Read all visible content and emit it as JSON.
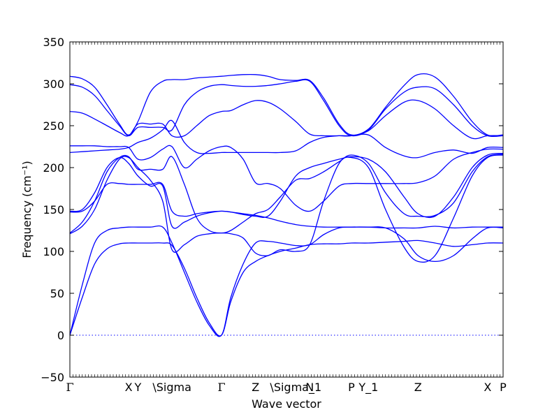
{
  "chart_data": {
    "type": "line",
    "title": "",
    "xlabel": "Wave vector",
    "ylabel": "Frequency (cm⁻¹)",
    "ylim": [
      -50,
      350
    ],
    "yticks": [
      -50,
      0,
      50,
      100,
      150,
      200,
      250,
      300,
      350
    ],
    "grid": false,
    "legend": "none",
    "x_unit": "path segment index (k-points)",
    "xlim": [
      0,
      14
    ],
    "kpoints": [
      {
        "label": "Γ",
        "x": 0
      },
      {
        "label": "X",
        "x": 1.9
      },
      {
        "label": "Y",
        "x": 2.2
      },
      {
        "label": "\\Sigma",
        "x": 3.3
      },
      {
        "label": "Γ",
        "x": 4.9
      },
      {
        "label": "Z",
        "x": 6.0
      },
      {
        "label": "\\Sigma_1",
        "x": 7.3
      },
      {
        "label": "N",
        "x": 7.75
      },
      {
        "label": "P",
        "x": 9.1
      },
      {
        "label": "Y_1",
        "x": 9.65
      },
      {
        "label": "Z",
        "x": 11.25
      },
      {
        "label": "X",
        "x": 13.5
      },
      {
        "label": "P",
        "x": 14
      }
    ],
    "line_color": "#0000ff",
    "zero_line_color": "#0000ff",
    "series": [
      {
        "x": [
          0,
          0.4,
          0.8,
          1.2,
          1.6,
          1.9,
          2.2,
          2.6,
          3.0,
          3.3,
          3.7,
          4.1,
          4.5,
          4.9,
          5.2,
          5.6,
          6.0,
          6.4,
          6.8,
          7.3,
          7.75,
          8.2,
          8.7,
          9.1,
          9.65,
          10.2,
          10.8,
          11.25,
          11.8,
          12.4,
          13.0,
          13.5,
          14
        ],
        "y": [
          0,
          45,
          85,
          103,
          109,
          110,
          110,
          110,
          110,
          107,
          80,
          45,
          15,
          0,
          40,
          75,
          88,
          95,
          100,
          104,
          108,
          109,
          109,
          110,
          110,
          111,
          112,
          113,
          110,
          106,
          108,
          110,
          110
        ]
      },
      {
        "x": [
          0,
          0.4,
          0.8,
          1.2,
          1.6,
          1.9,
          2.2,
          2.6,
          3.0,
          3.3,
          3.7,
          4.1,
          4.5,
          4.9,
          5.2,
          5.6,
          6.0,
          6.4,
          6.8,
          7.3,
          7.75,
          8.2,
          8.7,
          9.1,
          9.65,
          10.2,
          10.8,
          11.25,
          11.8,
          12.4,
          13.0,
          13.5,
          14
        ],
        "y": [
          0,
          60,
          110,
          125,
          128,
          129,
          129,
          129,
          129,
          110,
          75,
          40,
          12,
          0,
          45,
          85,
          110,
          112,
          110,
          107,
          108,
          120,
          128,
          129,
          129,
          128,
          115,
          95,
          88,
          95,
          115,
          128,
          128
        ]
      },
      {
        "x": [
          0,
          0.4,
          0.8,
          1.2,
          1.6,
          1.9,
          2.2,
          2.6,
          3.0,
          3.3,
          3.7,
          4.1,
          4.5,
          4.9,
          5.2,
          5.6,
          6.0,
          6.4,
          6.8,
          7.3,
          7.75,
          8.2,
          8.7,
          9.1,
          9.65,
          10.2,
          10.8,
          11.25,
          11.8,
          12.4,
          13.0,
          13.5,
          14
        ],
        "y": [
          121,
          130,
          150,
          185,
          210,
          212,
          200,
          185,
          160,
          102,
          108,
          118,
          121,
          122,
          121,
          116,
          98,
          95,
          102,
          100,
          108,
          160,
          205,
          212,
          200,
          150,
          105,
          88,
          95,
          140,
          190,
          212,
          215
        ]
      },
      {
        "x": [
          0,
          0.4,
          0.8,
          1.2,
          1.6,
          1.9,
          2.2,
          2.6,
          3.0,
          3.3,
          3.7,
          4.1,
          4.5,
          4.9,
          5.2,
          5.6,
          6.0,
          6.4,
          6.8,
          7.3,
          7.75,
          8.2,
          8.7,
          9.1,
          9.65,
          10.2,
          10.8,
          11.25,
          11.8,
          12.4,
          13.0,
          13.5,
          14
        ],
        "y": [
          122,
          135,
          160,
          195,
          212,
          213,
          198,
          198,
          198,
          213,
          180,
          140,
          125,
          122,
          125,
          135,
          145,
          150,
          165,
          185,
          187,
          195,
          207,
          215,
          205,
          170,
          145,
          142,
          143,
          158,
          195,
          213,
          216
        ]
      },
      {
        "x": [
          0,
          0.4,
          0.8,
          1.2,
          1.6,
          1.9,
          2.2,
          2.6,
          3.0,
          3.3,
          3.7,
          4.1,
          4.5,
          4.9,
          5.2,
          5.6,
          6.0,
          6.4,
          6.8,
          7.3,
          7.75,
          8.2,
          8.7,
          9.1,
          9.65,
          10.2,
          10.8,
          11.25,
          11.8,
          12.4,
          13.0,
          13.5,
          14
        ],
        "y": [
          147,
          148,
          160,
          180,
          181,
          180,
          180,
          180,
          180,
          148,
          142,
          145,
          147,
          148,
          147,
          145,
          143,
          140,
          136,
          132,
          130,
          129,
          129,
          129,
          129,
          128,
          128,
          128,
          130,
          128,
          129,
          129,
          129
        ]
      },
      {
        "x": [
          0,
          0.4,
          0.8,
          1.2,
          1.6,
          1.9,
          2.2,
          2.6,
          3.0,
          3.3,
          3.7,
          4.1,
          4.5,
          4.9,
          5.2,
          5.6,
          6.0,
          6.4,
          6.8,
          7.3,
          7.75,
          8.2,
          8.7,
          9.1,
          9.65,
          10.2,
          10.8,
          11.25,
          11.8,
          12.4,
          13.0,
          13.5,
          14
        ],
        "y": [
          148,
          150,
          170,
          200,
          212,
          205,
          190,
          178,
          178,
          130,
          135,
          142,
          146,
          148,
          147,
          144,
          142,
          142,
          160,
          190,
          200,
          205,
          210,
          213,
          210,
          195,
          165,
          145,
          142,
          165,
          200,
          215,
          217
        ]
      },
      {
        "x": [
          0,
          0.4,
          0.8,
          1.2,
          1.6,
          1.9,
          2.2,
          2.6,
          3.0,
          3.3,
          3.7,
          4.1,
          4.5,
          4.9,
          5.2,
          5.6,
          6.0,
          6.4,
          6.8,
          7.3,
          7.75,
          8.2,
          8.7,
          9.1,
          9.65,
          10.2,
          10.8,
          11.25,
          11.8,
          12.4,
          13.0,
          13.5,
          14
        ],
        "y": [
          218,
          219,
          220,
          221,
          222,
          224,
          230,
          235,
          245,
          256,
          230,
          218,
          217,
          218,
          218,
          218,
          218,
          218,
          218,
          220,
          230,
          236,
          238,
          238,
          239,
          224,
          214,
          212,
          218,
          221,
          217,
          224,
          224
        ]
      },
      {
        "x": [
          0,
          0.4,
          0.8,
          1.2,
          1.6,
          1.9,
          2.2,
          2.6,
          3.0,
          3.3,
          3.7,
          4.1,
          4.5,
          4.9,
          5.2,
          5.6,
          6.0,
          6.4,
          6.8,
          7.3,
          7.75,
          8.2,
          8.7,
          9.1,
          9.65,
          10.2,
          10.8,
          11.25,
          11.8,
          12.4,
          13.0,
          13.5,
          14
        ],
        "y": [
          226,
          226,
          226,
          225,
          225,
          224,
          210,
          212,
          222,
          225,
          200,
          210,
          220,
          225,
          224,
          210,
          182,
          181,
          175,
          155,
          148,
          160,
          178,
          181,
          181,
          181,
          181,
          182,
          190,
          210,
          218,
          222,
          222
        ]
      },
      {
        "x": [
          0,
          0.4,
          0.8,
          1.2,
          1.6,
          1.9,
          2.2,
          2.6,
          3.0,
          3.3,
          3.7,
          4.1,
          4.5,
          4.9,
          5.2,
          5.6,
          6.0,
          6.4,
          6.8,
          7.3,
          7.75,
          8.2,
          8.7,
          9.1,
          9.65,
          10.2,
          10.8,
          11.25,
          11.8,
          12.4,
          13.0,
          13.5,
          14
        ],
        "y": [
          267,
          265,
          258,
          250,
          242,
          238,
          252,
          252,
          252,
          238,
          238,
          250,
          262,
          267,
          268,
          275,
          280,
          278,
          270,
          255,
          240,
          238,
          238,
          238,
          244,
          262,
          278,
          280,
          270,
          250,
          235,
          238,
          238
        ]
      },
      {
        "x": [
          0,
          0.4,
          0.8,
          1.2,
          1.6,
          1.9,
          2.2,
          2.6,
          3.0,
          3.3,
          3.7,
          4.1,
          4.5,
          4.9,
          5.2,
          5.6,
          6.0,
          6.4,
          6.8,
          7.3,
          7.75,
          8.2,
          8.7,
          9.1,
          9.65,
          10.2,
          10.8,
          11.25,
          11.8,
          12.4,
          13.0,
          13.5,
          14
        ],
        "y": [
          299,
          296,
          286,
          268,
          250,
          238,
          248,
          248,
          248,
          245,
          275,
          290,
          297,
          299,
          298,
          297,
          297,
          298,
          300,
          303,
          303,
          280,
          250,
          238,
          245,
          270,
          290,
          296,
          294,
          275,
          250,
          238,
          238
        ]
      },
      {
        "x": [
          0,
          0.4,
          0.8,
          1.2,
          1.6,
          1.9,
          2.2,
          2.6,
          3.0,
          3.3,
          3.7,
          4.1,
          4.5,
          4.9,
          5.2,
          5.6,
          6.0,
          6.4,
          6.8,
          7.3,
          7.75,
          8.2,
          8.7,
          9.1,
          9.65,
          10.2,
          10.8,
          11.25,
          11.8,
          12.4,
          13.0,
          13.5,
          14
        ],
        "y": [
          309,
          306,
          296,
          275,
          252,
          239,
          255,
          290,
          303,
          305,
          305,
          307,
          308,
          309,
          310,
          311,
          311,
          309,
          305,
          304,
          304,
          283,
          252,
          239,
          246,
          272,
          298,
          311,
          308,
          285,
          255,
          239,
          239
        ]
      }
    ]
  }
}
